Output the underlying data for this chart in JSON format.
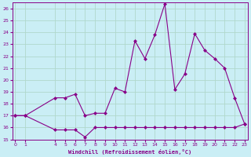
{
  "xlabel": "Windchill (Refroidissement éolien,°C)",
  "background_color": "#caeef5",
  "grid_color": "#b0d8cc",
  "line_color": "#880088",
  "x_upper": [
    0,
    1,
    4,
    5,
    6,
    7,
    8,
    9,
    10,
    11,
    12,
    13,
    14,
    15,
    16,
    17,
    18,
    19,
    20,
    21,
    22,
    23
  ],
  "y_upper": [
    17.0,
    17.0,
    18.5,
    18.5,
    18.8,
    17.0,
    17.2,
    17.2,
    19.3,
    19.0,
    23.3,
    21.8,
    23.8,
    26.4,
    19.2,
    20.5,
    23.9,
    22.5,
    21.8,
    21.0,
    18.5,
    16.3
  ],
  "x_lower": [
    0,
    1,
    4,
    5,
    6,
    7,
    8,
    9,
    10,
    11,
    12,
    13,
    14,
    15,
    16,
    17,
    18,
    19,
    20,
    21,
    22,
    23
  ],
  "y_lower": [
    17.0,
    17.0,
    15.8,
    15.8,
    15.8,
    15.2,
    16.0,
    16.0,
    16.0,
    16.0,
    16.0,
    16.0,
    16.0,
    16.0,
    16.0,
    16.0,
    16.0,
    16.0,
    16.0,
    16.0,
    16.0,
    16.3
  ],
  "ylim": [
    15,
    26.5
  ],
  "yticks": [
    15,
    16,
    17,
    18,
    19,
    20,
    21,
    22,
    23,
    24,
    25,
    26
  ],
  "xtick_positions": [
    0,
    1,
    4,
    5,
    6,
    7,
    8,
    9,
    10,
    11,
    12,
    13,
    14,
    15,
    16,
    17,
    18,
    19,
    20,
    21,
    22,
    23
  ],
  "xtick_labels": [
    "0",
    "1",
    "4",
    "5",
    "6",
    "7",
    "8",
    "9",
    "10",
    "11",
    "12",
    "13",
    "14",
    "15",
    "16",
    "17",
    "18",
    "19",
    "20",
    "21",
    "22",
    "23"
  ],
  "xlim": [
    -0.3,
    23.3
  ],
  "marker_size": 2.5
}
